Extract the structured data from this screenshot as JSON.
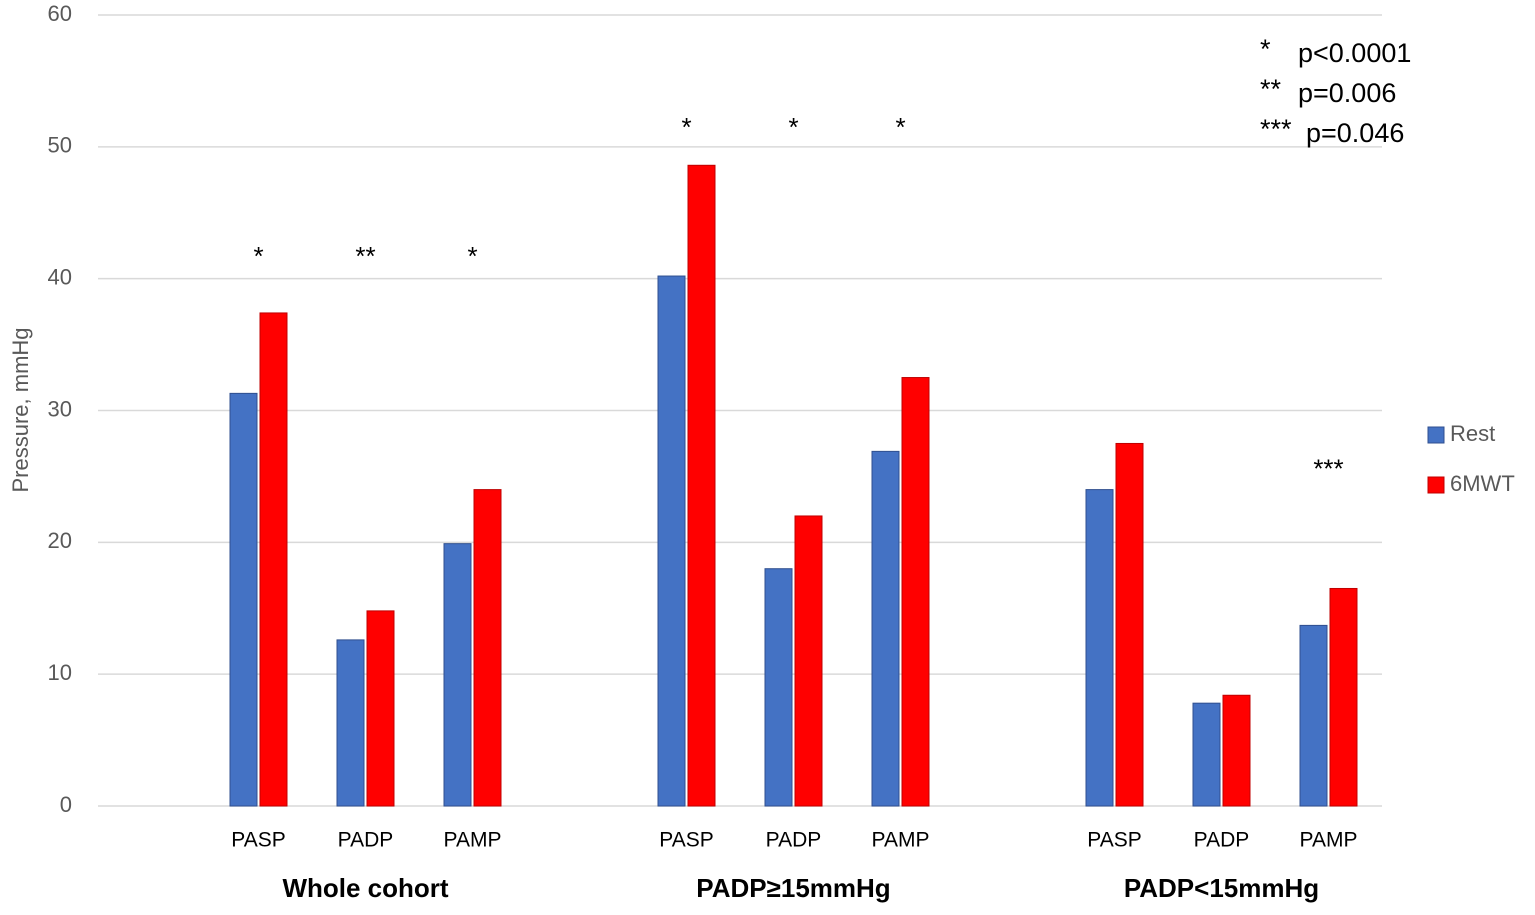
{
  "chart_data": {
    "type": "bar",
    "y_label": "Pressure, mmHg",
    "categories": [
      "PASP",
      "PADP",
      "PAMP",
      "PASP",
      "PADP",
      "PAMP",
      "PASP",
      "PADP",
      "PAMP"
    ],
    "groups": [
      {
        "label": "Whole cohort",
        "categories": [
          "PASP",
          "PADP",
          "PAMP"
        ]
      },
      {
        "label": "PADP≥15mmHg",
        "categories": [
          "PASP",
          "PADP",
          "PAMP"
        ]
      },
      {
        "label": "PADP<15mmHg",
        "categories": [
          "PASP",
          "PADP",
          "PAMP"
        ]
      }
    ],
    "series": [
      {
        "name": "Rest",
        "color": "#4472c4",
        "values": [
          31.3,
          12.6,
          19.9,
          40.2,
          18.0,
          26.9,
          24.0,
          7.8,
          13.7
        ]
      },
      {
        "name": "6MWT",
        "color": "#ff0000",
        "values": [
          37.4,
          14.8,
          24.0,
          48.6,
          22.0,
          32.5,
          27.5,
          8.4,
          16.5
        ]
      }
    ],
    "significance": [
      "*",
      "**",
      "*",
      "*",
      "*",
      "*",
      null,
      null,
      "***"
    ],
    "notes": [
      {
        "symbol": "*",
        "text": "p<0.0001"
      },
      {
        "symbol": "**",
        "text": "p=0.006"
      },
      {
        "symbol": "***",
        "text": "p=0.046"
      }
    ],
    "ylim": [
      0,
      60
    ],
    "yticks": [
      0,
      10,
      20,
      30,
      40,
      50,
      60
    ],
    "grid": true,
    "legend": "right"
  }
}
